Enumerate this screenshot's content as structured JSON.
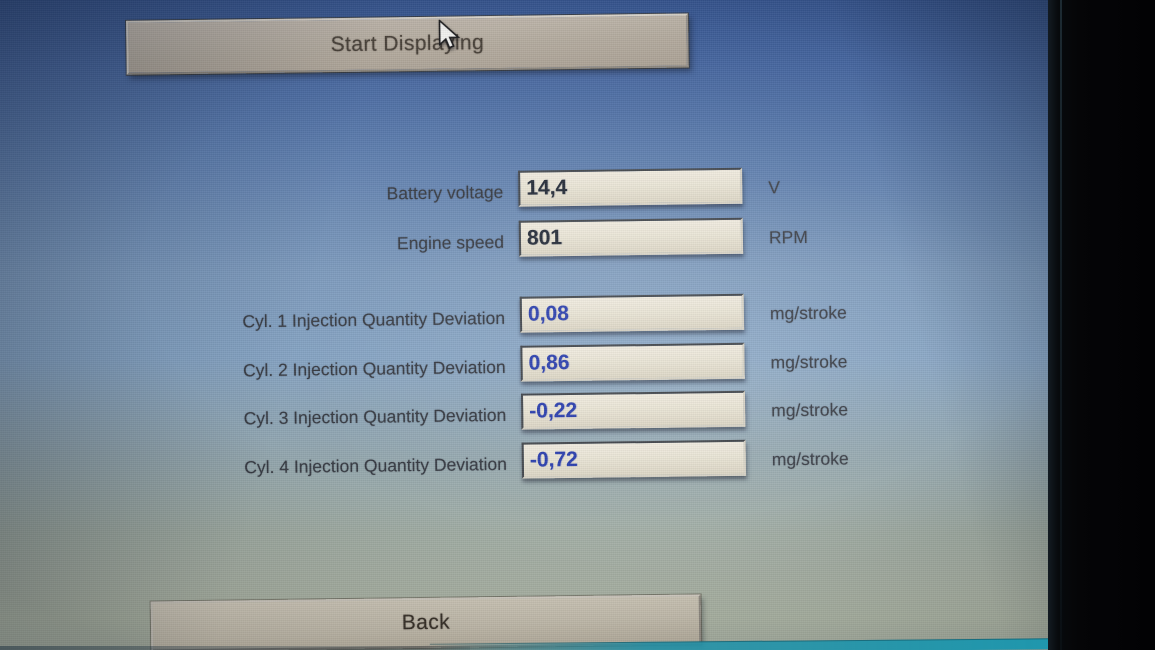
{
  "buttons": {
    "start": {
      "label": "Start Displaying"
    },
    "back": {
      "label": "Back"
    }
  },
  "readouts": {
    "primary": [
      {
        "label": "Battery voltage",
        "value": "14,4",
        "unit": "V",
        "value_style": "dark"
      },
      {
        "label": "Engine speed",
        "value": "801",
        "unit": "RPM",
        "value_style": "dark"
      }
    ],
    "cylinders": [
      {
        "label": "Cyl. 1 Injection Quantity Deviation",
        "value": "0,08",
        "unit": "mg/stroke",
        "value_style": "blue"
      },
      {
        "label": "Cyl. 2 Injection Quantity Deviation",
        "value": "0,86",
        "unit": "mg/stroke",
        "value_style": "blue"
      },
      {
        "label": "Cyl. 3 Injection Quantity Deviation",
        "value": "-0,22",
        "unit": "mg/stroke",
        "value_style": "blue"
      },
      {
        "label": "Cyl. 4 Injection Quantity Deviation",
        "value": "-0,72",
        "unit": "mg/stroke",
        "value_style": "blue"
      }
    ]
  },
  "cursor": {
    "icon": "arrow-pointer-icon"
  },
  "colors": {
    "screen_gradient_top": "#36558f",
    "screen_gradient_middle": "#84a2c2",
    "screen_gradient_bottom": "#b6bfae",
    "button_face": "#b4ab9f",
    "back_button_face": "#d0c9b9",
    "field_background": "#e9e4d5",
    "value_blue": "#2b3fae",
    "value_dark": "#222936",
    "label_text": "#363a42",
    "button_text": "#49423a",
    "bezel_black": "#050507",
    "bezel_edge_teal": "#1f97ad"
  }
}
